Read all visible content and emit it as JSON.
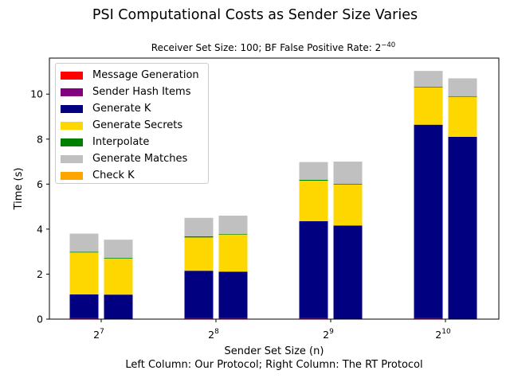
{
  "chart_data": {
    "type": "bar",
    "stacked": true,
    "title": "PSI Computational Costs as Sender Size Varies",
    "subtitle": "Receiver Set Size: 100; BF False Positive Rate: 2",
    "subtitle_exponent": "−40",
    "xlabel": "Sender Set Size (n)",
    "xlabel_note": "Left Column: Our Protocol; Right Column: The RT Protocol",
    "ylabel": "Time (s)",
    "ylim": [
      0,
      11.6
    ],
    "yticks": [
      "0",
      "2",
      "4",
      "6",
      "8",
      "10"
    ],
    "ytick_values": [
      0,
      2,
      4,
      6,
      8,
      10
    ],
    "categories": [
      {
        "base": "2",
        "exp": "7"
      },
      {
        "base": "2",
        "exp": "8"
      },
      {
        "base": "2",
        "exp": "9"
      },
      {
        "base": "2",
        "exp": "10"
      }
    ],
    "columns_per_group": [
      "Our Protocol",
      "The RT Protocol"
    ],
    "legend_position": "upper-left",
    "grid": false,
    "series": [
      {
        "name": "Message Generation",
        "color": "#ff0000",
        "ours": [
          0.03,
          0.03,
          0.03,
          0.03
        ],
        "rt": [
          0.0,
          0.03,
          0.0,
          0.0
        ]
      },
      {
        "name": "Sender Hash Items",
        "color": "#800080",
        "ours": [
          0.01,
          0.01,
          0.01,
          0.01
        ],
        "rt": [
          0.01,
          0.01,
          0.01,
          0.01
        ]
      },
      {
        "name": "Generate K",
        "color": "#000080",
        "ours": [
          1.06,
          2.11,
          4.31,
          8.6
        ],
        "rt": [
          1.08,
          2.07,
          4.15,
          8.09
        ]
      },
      {
        "name": "Generate Secrets",
        "color": "#ffd700",
        "ours": [
          1.86,
          1.48,
          1.8,
          1.66
        ],
        "rt": [
          1.6,
          1.65,
          1.82,
          1.78
        ]
      },
      {
        "name": "Interpolate",
        "color": "#008000",
        "ours": [
          0.03,
          0.05,
          0.04,
          0.03
        ],
        "rt": [
          0.03,
          0.03,
          0.03,
          0.03
        ]
      },
      {
        "name": "Generate Matches",
        "color": "#c0c0c0",
        "ours": [
          0.81,
          0.82,
          0.79,
          0.7
        ],
        "rt": [
          0.81,
          0.81,
          0.99,
          0.79
        ]
      },
      {
        "name": "Check K",
        "color": "#ffa500",
        "ours": [
          0.0,
          0.0,
          0.0,
          0.0
        ],
        "rt": [
          0.0,
          0.0,
          0.0,
          0.0
        ]
      }
    ]
  }
}
